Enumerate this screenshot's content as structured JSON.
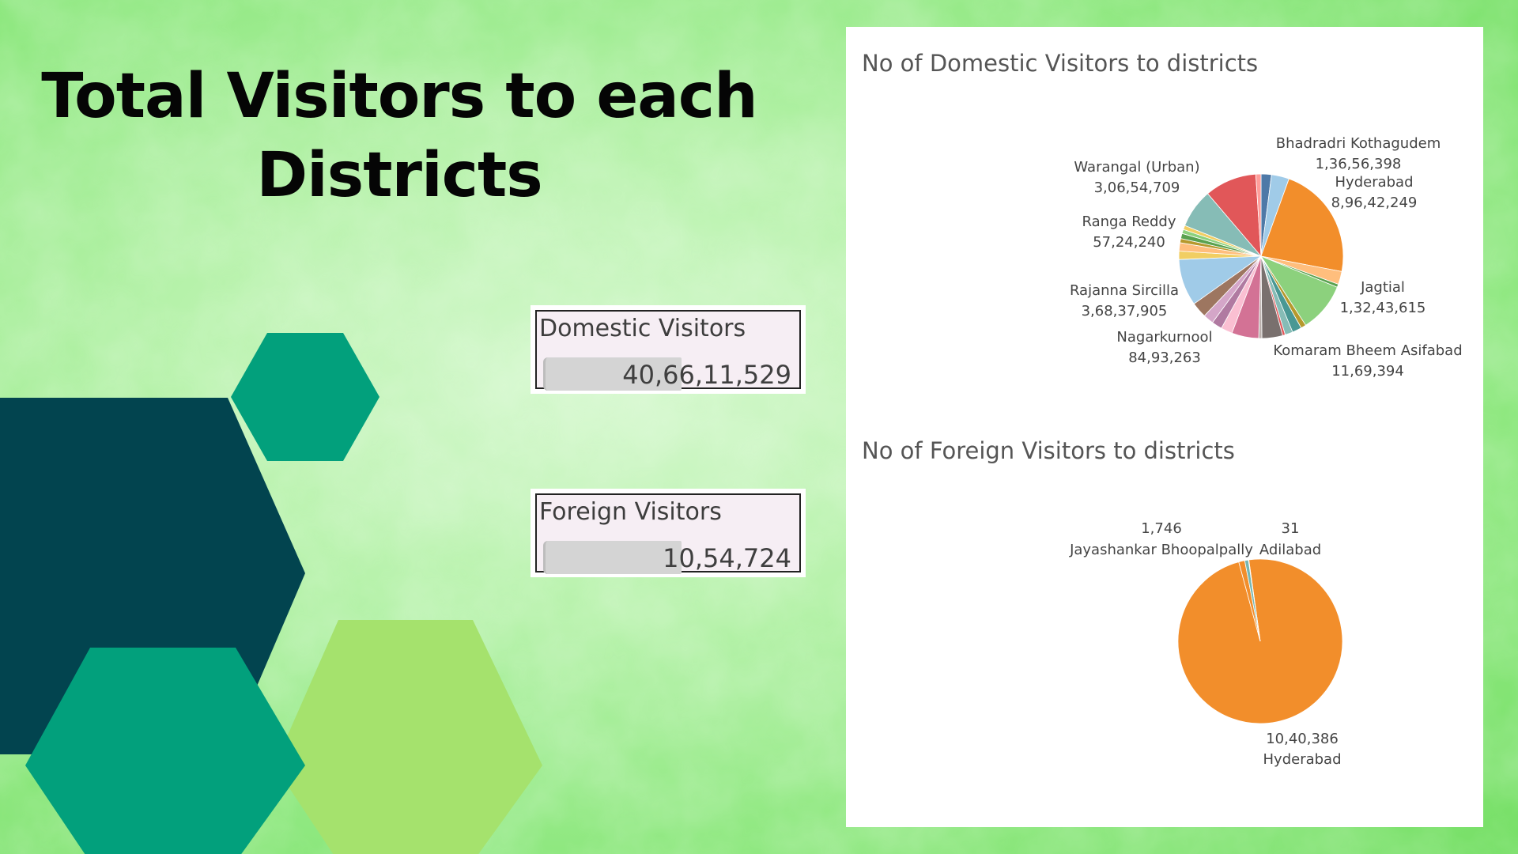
{
  "title": {
    "line1": "Total Visitors to each",
    "line2": "Districts"
  },
  "kpis": {
    "domestic": {
      "label": "Domestic Visitors",
      "value": "40,66,11,529"
    },
    "foreign": {
      "label": "Foreign Visitors",
      "value": "10,54,724"
    }
  },
  "colors": {
    "hex_dark": "#02444f",
    "hex_teal": "#02a07c",
    "hex_lime": "#a5e26d",
    "slice_orange": "#f28e2b",
    "slice_red": "#e15759",
    "slice_teal": "#76b7b2",
    "slice_green": "#59a14f",
    "slice_lightblue": "#a0cbe8"
  },
  "chart_data": [
    {
      "type": "pie",
      "title": "No of Domestic Visitors to districts",
      "labeled_slices": [
        {
          "name": "Bhadradri Kothagudem",
          "value": 13656398,
          "label": "1,36,56,398"
        },
        {
          "name": "Hyderabad",
          "value": 89642249,
          "label": "8,96,42,249"
        },
        {
          "name": "Jagtial",
          "value": 13243615,
          "label": "1,32,43,615"
        },
        {
          "name": "Komaram Bheem Asifabad",
          "value": 1169394,
          "label": "11,69,394"
        },
        {
          "name": "Nagarkurnool",
          "value": 8493263,
          "label": "84,93,263"
        },
        {
          "name": "Rajanna Sircilla",
          "value": 36837905,
          "label": "3,68,37,905"
        },
        {
          "name": "Ranga Reddy",
          "value": 5724240,
          "label": "57,24,240"
        },
        {
          "name": "Warangal (Urban)",
          "value": 30654709,
          "label": "3,06,54,709"
        }
      ],
      "slices": [
        {
          "value": 2.0,
          "color": "#4e79a7"
        },
        {
          "value": 3.4,
          "color": "#a0cbe8"
        },
        {
          "value": 22.0,
          "color": "#f28e2b"
        },
        {
          "value": 2.5,
          "color": "#ffbe7d"
        },
        {
          "value": 0.6,
          "color": "#59a14f"
        },
        {
          "value": 9.5,
          "color": "#8cd17d"
        },
        {
          "value": 1.0,
          "color": "#b6992d"
        },
        {
          "value": 1.8,
          "color": "#499894"
        },
        {
          "value": 1.5,
          "color": "#86bcb6"
        },
        {
          "value": 0.5,
          "color": "#e15759"
        },
        {
          "value": 4.0,
          "color": "#79706e"
        },
        {
          "value": 0.6,
          "color": "#bab0ac"
        },
        {
          "value": 5.2,
          "color": "#d37295"
        },
        {
          "value": 2.2,
          "color": "#fabfd2"
        },
        {
          "value": 2.0,
          "color": "#b07aa1"
        },
        {
          "value": 2.0,
          "color": "#d4a6c8"
        },
        {
          "value": 3.0,
          "color": "#9d7660"
        },
        {
          "value": 9.0,
          "color": "#a0cbe8"
        },
        {
          "value": 1.6,
          "color": "#f1ce63"
        },
        {
          "value": 1.6,
          "color": "#ffbe7d"
        },
        {
          "value": 0.8,
          "color": "#b6992d"
        },
        {
          "value": 1.0,
          "color": "#59a14f"
        },
        {
          "value": 0.8,
          "color": "#8cd17d"
        },
        {
          "value": 0.8,
          "color": "#f1ce63"
        },
        {
          "value": 7.5,
          "color": "#86bcb6"
        },
        {
          "value": 10.0,
          "color": "#e15759"
        },
        {
          "value": 1.0,
          "color": "#ff9d9a"
        }
      ]
    },
    {
      "type": "pie",
      "title": "No of Foreign Visitors to districts",
      "slices": [
        {
          "name": "Hyderabad",
          "value": 1040386,
          "label": "10,40,386",
          "color": "#f28e2b"
        },
        {
          "name": "Jayashankar Bhoopalpally",
          "value": 1746,
          "label": "1,746",
          "color": "#76b7b2"
        },
        {
          "name": "Adilabad",
          "value": 31,
          "label": "31",
          "color": "#4e79a7"
        }
      ],
      "other_value": 12561
    }
  ]
}
